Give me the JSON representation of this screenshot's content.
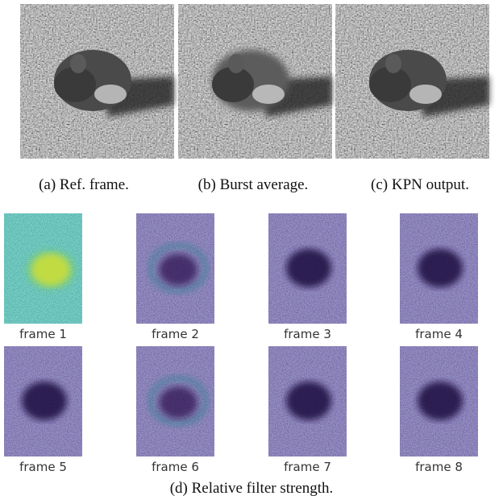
{
  "captions": [
    "(a) Ref. frame.",
    "(b) Burst average.",
    "(c) KPN output."
  ],
  "frames": [
    "frame 1",
    "frame 2",
    "frame 3",
    "frame 4",
    "frame 5",
    "frame 6",
    "frame 7",
    "frame 8"
  ],
  "caption": "(d) Relative filter strength."
}
